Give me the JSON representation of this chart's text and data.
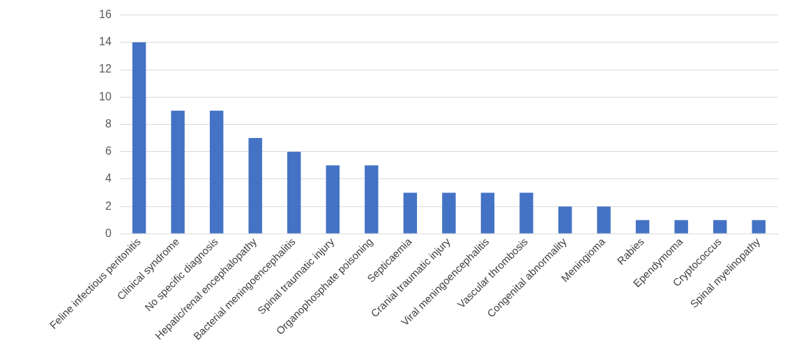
{
  "chart_data": {
    "type": "bar",
    "categories": [
      "Feline infectious peritonitis",
      "Clinical syndrome",
      "No specific diagnosis",
      "Hepatic/renal encephalopathy",
      "Bacterial meningoencephalitis",
      "Spinal traumatic injury",
      "Organophosphate poisoning",
      "Septicaemia",
      "Cranial traumatic injury",
      "Viral meningoencephalitis",
      "Vascular thrombosis",
      "Congenital abnormality",
      "Meningioma",
      "Rabies",
      "Ependymoma",
      "Cryptococcus",
      "Spinal myelinopathy"
    ],
    "values": [
      14,
      9,
      9,
      7,
      6,
      5,
      5,
      3,
      3,
      3,
      3,
      2,
      2,
      1,
      1,
      1,
      1
    ],
    "color": "#4472c4",
    "ylim": [
      0,
      16
    ],
    "yticks": [
      0,
      2,
      4,
      6,
      8,
      10,
      12,
      14,
      16
    ],
    "grid": "y"
  }
}
